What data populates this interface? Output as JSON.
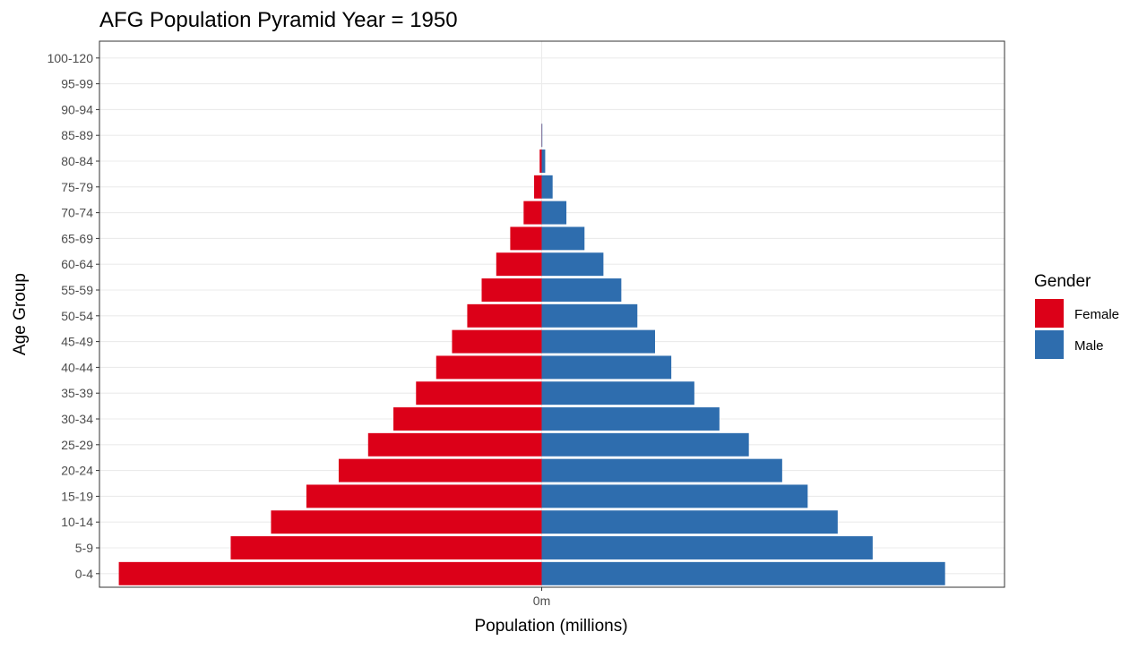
{
  "chart_data": {
    "type": "bar",
    "orientation": "horizontal",
    "title": "AFG Population Pyramid Year = 1950",
    "xlabel": "Population (millions)",
    "ylabel": "Age Group",
    "x_tick_labels": [
      "0m"
    ],
    "xlim": [
      -0.215,
      0.225
    ],
    "grid": true,
    "legend": {
      "title": "Gender",
      "position": "right"
    },
    "categories": [
      "0-4",
      "5-9",
      "10-14",
      "15-19",
      "20-24",
      "25-29",
      "30-34",
      "35-39",
      "40-44",
      "45-49",
      "50-54",
      "55-59",
      "60-64",
      "65-69",
      "70-74",
      "75-79",
      "80-84",
      "85-89",
      "90-94",
      "95-99",
      "100-120"
    ],
    "series": [
      {
        "name": "Female",
        "color": "#DC0018",
        "values": [
          -0.2056,
          -0.1512,
          -0.1316,
          -0.1144,
          -0.0987,
          -0.0844,
          -0.0721,
          -0.0611,
          -0.0513,
          -0.0436,
          -0.0362,
          -0.0292,
          -0.0221,
          -0.0153,
          -0.0088,
          -0.0037,
          -0.001,
          -0.0001,
          0,
          0,
          0
        ]
      },
      {
        "name": "Male",
        "color": "#2E6DAE",
        "values": [
          0.1961,
          0.1609,
          0.1439,
          0.1293,
          0.1169,
          0.1007,
          0.0864,
          0.0742,
          0.063,
          0.0551,
          0.0465,
          0.0387,
          0.03,
          0.0208,
          0.012,
          0.0053,
          0.0017,
          0.0003,
          0,
          0,
          0
        ]
      }
    ]
  }
}
